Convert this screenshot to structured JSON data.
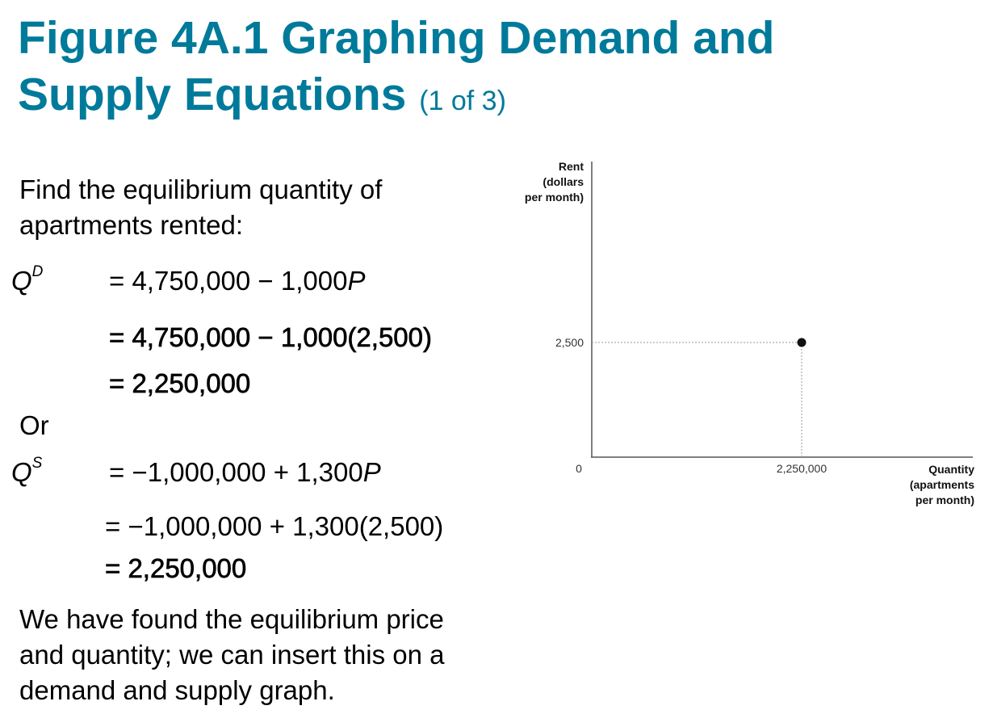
{
  "title": {
    "line1": "Figure 4A.1 Graphing Demand and",
    "line2": "Supply Equations",
    "page_indicator": "(1 of 3)"
  },
  "intro": {
    "line1": "Find the equilibrium quantity of",
    "line2": "apartments rented:"
  },
  "demand": {
    "var": "Q",
    "sup": "D",
    "eq1_prefix": "= 4,750,000 − 1,000",
    "eq1_var": "P",
    "eq2": "= 4,750,000 − 1,000(2,500)",
    "eq3": "= 2,250,000"
  },
  "or_label": "Or",
  "supply": {
    "var": "Q",
    "sup": "S",
    "eq1_prefix": "= −1,000,000 + 1,300",
    "eq1_var": "P",
    "eq2": "= −1,000,000 + 1,300(2,500)",
    "eq3": "= 2,250,000"
  },
  "conclusion": {
    "line1": "We have found the equilibrium price",
    "line2": "and quantity; we can insert this on a",
    "line3": "demand and supply graph."
  },
  "chart_data": {
    "type": "scatter",
    "ylabel_lines": [
      "Rent",
      "(dollars",
      "per month)"
    ],
    "xlabel_lines": [
      "Quantity",
      "(apartments",
      "per month)"
    ],
    "origin_label": "0",
    "points": [
      {
        "x": 2250000,
        "y": 2500
      }
    ],
    "x_tick_labels": [
      "2,250,000"
    ],
    "y_tick_labels": [
      "2,500"
    ],
    "reference_lines": "dotted",
    "grid": false
  },
  "colors": {
    "title": "#007a9a",
    "text": "#000000",
    "axis": "#555555",
    "point": "#111111"
  }
}
